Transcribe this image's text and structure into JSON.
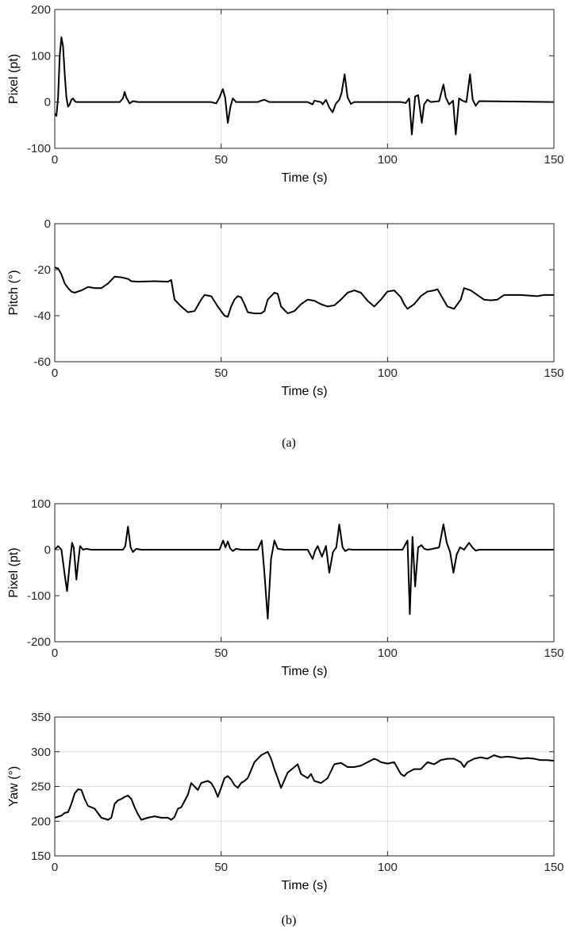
{
  "captions": [
    "(a)",
    "(b)"
  ],
  "chart_data": [
    {
      "type": "line",
      "panel": "(a)",
      "title": "",
      "xlabel": "Time (s)",
      "ylabel": "Pixel (pt)",
      "xlim": [
        0,
        150
      ],
      "ylim": [
        -100,
        200
      ],
      "xticks": [
        0,
        50,
        100,
        150
      ],
      "yticks": [
        -100,
        0,
        100,
        200
      ],
      "grid": "x",
      "series": [
        {
          "x": [
            0,
            0.5,
            1,
            1.5,
            2,
            2.5,
            3,
            3.5,
            4,
            4.5,
            5,
            5.5,
            6,
            6.5,
            7,
            8,
            10,
            19.5,
            20.5,
            21,
            21.5,
            22.5,
            23.5,
            25,
            47,
            48.5,
            49.5,
            50.5,
            51.2,
            52,
            52.8,
            53.5,
            54.5,
            56,
            61,
            62,
            63,
            64.5,
            76,
            77.5,
            78,
            80,
            80.5,
            81.5,
            82.5,
            83.5,
            84.5,
            85.5,
            86.2,
            87.1,
            88,
            89,
            90,
            104,
            105.5,
            106.5,
            107.3,
            108.3,
            109.2,
            110.3,
            111,
            112,
            113,
            115.5,
            116.8,
            117.5,
            118.5,
            119.7,
            120.5,
            121.5,
            122.5,
            123.7,
            124.8,
            125.6,
            126.5,
            127.5,
            150
          ],
          "y": [
            -25,
            -30,
            10,
            100,
            140,
            120,
            60,
            10,
            -10,
            -5,
            5,
            8,
            2,
            0,
            0,
            0,
            0,
            0,
            8,
            22,
            10,
            -3,
            2,
            0,
            0,
            -3,
            10,
            28,
            10,
            -45,
            -10,
            8,
            0,
            0,
            0,
            3,
            5,
            0,
            0,
            -5,
            3,
            0,
            -5,
            5,
            -12,
            -22,
            -3,
            5,
            20,
            60,
            10,
            -4,
            0,
            0,
            -2,
            8,
            -70,
            12,
            15,
            -45,
            -5,
            5,
            0,
            2,
            38,
            10,
            -5,
            3,
            -70,
            8,
            3,
            0,
            60,
            5,
            -8,
            2,
            0
          ]
        }
      ]
    },
    {
      "type": "line",
      "panel": "(a)",
      "title": "",
      "xlabel": "Time (s)",
      "ylabel": "Pitch (°)",
      "xlim": [
        0,
        150
      ],
      "ylim": [
        -60,
        0
      ],
      "xticks": [
        0,
        50,
        100,
        150
      ],
      "yticks": [
        -60,
        -40,
        -20,
        0
      ],
      "grid": "x",
      "series": [
        {
          "x": [
            0,
            1,
            2,
            3,
            4,
            5,
            6,
            8,
            10,
            12,
            14,
            16,
            18,
            20,
            22,
            23,
            25,
            30,
            34,
            35,
            36,
            38,
            40,
            42,
            44,
            45,
            47,
            49,
            51,
            52,
            53,
            54,
            55,
            56,
            57,
            58,
            60,
            62,
            63,
            64,
            66,
            67,
            68,
            70,
            72,
            74,
            76,
            78,
            80,
            82,
            84,
            86,
            88,
            90,
            92,
            94,
            96,
            98,
            100,
            102,
            104,
            105,
            106,
            108,
            110,
            112,
            114,
            115,
            116,
            118,
            120,
            122,
            123,
            125,
            127,
            129,
            131,
            133,
            135,
            140,
            145,
            147,
            150
          ],
          "y": [
            -19,
            -19.5,
            -22,
            -26,
            -28,
            -29.5,
            -30,
            -29,
            -27.5,
            -28,
            -28,
            -26,
            -23,
            -23.3,
            -24,
            -25,
            -25.2,
            -25,
            -25.2,
            -24.5,
            -33,
            -36,
            -38.5,
            -38,
            -33,
            -31,
            -31.5,
            -36,
            -40,
            -40.5,
            -36,
            -33,
            -31.5,
            -32,
            -35,
            -38.5,
            -39,
            -39,
            -38,
            -33,
            -30,
            -30.5,
            -36,
            -39,
            -38,
            -35,
            -33,
            -33.5,
            -35,
            -36,
            -35.5,
            -33,
            -30,
            -29,
            -30,
            -33.5,
            -36,
            -33,
            -29.5,
            -29,
            -32,
            -35,
            -37,
            -35,
            -31.5,
            -29.5,
            -29,
            -28.5,
            -31,
            -36,
            -37,
            -33,
            -28,
            -29,
            -31,
            -33,
            -33.3,
            -33,
            -31,
            -31,
            -31.5,
            -31,
            -31
          ]
        }
      ]
    },
    {
      "type": "line",
      "panel": "(b)",
      "title": "",
      "xlabel": "Time (s)",
      "ylabel": "Pixel (pt)",
      "xlim": [
        0,
        150
      ],
      "ylim": [
        -200,
        100
      ],
      "xticks": [
        0,
        50,
        100,
        150
      ],
      "yticks": [
        -200,
        -100,
        0,
        100
      ],
      "grid": "x",
      "series": [
        {
          "x": [
            0,
            1,
            2,
            3,
            3.7,
            4.5,
            5.2,
            5.7,
            6.5,
            7,
            7.6,
            8.5,
            9.5,
            11,
            20.5,
            21.2,
            22,
            22.8,
            23.5,
            24.5,
            26,
            49.5,
            50.6,
            51.3,
            52,
            52.7,
            53.5,
            54.5,
            56,
            61,
            62.2,
            63,
            64,
            65,
            66,
            67,
            69,
            76,
            77.5,
            78.2,
            79,
            80.3,
            81.5,
            82.5,
            83.6,
            84.6,
            85.5,
            86.5,
            87.3,
            88.3,
            89.5,
            91,
            104.5,
            106,
            106.7,
            107.5,
            108.3,
            109.2,
            110.2,
            111,
            112,
            113,
            115.5,
            116.8,
            117.8,
            118.8,
            119.8,
            120.8,
            121.8,
            123,
            124.5,
            125.5,
            126.5,
            127.5,
            150
          ],
          "y": [
            0,
            8,
            0,
            -55,
            -90,
            -30,
            15,
            5,
            -65,
            -30,
            8,
            0,
            2,
            0,
            0,
            8,
            50,
            5,
            -5,
            2,
            0,
            0,
            20,
            5,
            18,
            3,
            -3,
            2,
            0,
            0,
            20,
            -50,
            -150,
            -20,
            20,
            2,
            0,
            0,
            -20,
            -3,
            8,
            -15,
            8,
            -50,
            -5,
            5,
            55,
            5,
            -3,
            1,
            0,
            0,
            0,
            20,
            -140,
            28,
            -80,
            5,
            10,
            2,
            0,
            1,
            5,
            55,
            15,
            -5,
            -50,
            -10,
            5,
            0,
            15,
            5,
            -2,
            0,
            0
          ]
        }
      ]
    },
    {
      "type": "line",
      "panel": "(b)",
      "title": "",
      "xlabel": "Time (s)",
      "ylabel": "Yaw (°)",
      "xlim": [
        0,
        150
      ],
      "ylim": [
        150,
        350
      ],
      "xticks": [
        0,
        50,
        100,
        150
      ],
      "yticks": [
        150,
        200,
        250,
        300,
        350
      ],
      "grid": "x+y",
      "series": [
        {
          "x": [
            0,
            2,
            3,
            4,
            5,
            6,
            7,
            8,
            9,
            10,
            12,
            14,
            16,
            17,
            18,
            19,
            20,
            21,
            22,
            23,
            24,
            25,
            26,
            28,
            30,
            32,
            34,
            35,
            36,
            37,
            38,
            40,
            41,
            42,
            43,
            44,
            46,
            47,
            48,
            49,
            50,
            51,
            52,
            53,
            54,
            55,
            56,
            57,
            58,
            60,
            62,
            64,
            65,
            66,
            67,
            68,
            70,
            72,
            73,
            74,
            75,
            76,
            77,
            78,
            80,
            82,
            84,
            86,
            88,
            90,
            92,
            94,
            96,
            97,
            98,
            100,
            102,
            104,
            105,
            106,
            108,
            110,
            112,
            114,
            116,
            118,
            120,
            122,
            123,
            124,
            126,
            128,
            130,
            132,
            134,
            136,
            138,
            140,
            142,
            144,
            146,
            148,
            150
          ],
          "y": [
            205,
            208,
            212,
            213,
            225,
            240,
            246,
            245,
            232,
            222,
            218,
            205,
            202,
            205,
            225,
            230,
            232,
            235,
            237,
            232,
            220,
            210,
            202,
            205,
            207,
            205,
            205,
            202,
            206,
            218,
            220,
            238,
            255,
            250,
            245,
            255,
            258,
            255,
            247,
            235,
            248,
            262,
            265,
            260,
            252,
            248,
            255,
            258,
            262,
            285,
            295,
            300,
            290,
            275,
            262,
            248,
            270,
            278,
            282,
            268,
            265,
            262,
            268,
            258,
            255,
            262,
            282,
            284,
            278,
            278,
            280,
            285,
            290,
            288,
            285,
            283,
            285,
            268,
            265,
            270,
            275,
            275,
            285,
            282,
            288,
            290,
            290,
            285,
            278,
            285,
            290,
            292,
            290,
            295,
            292,
            293,
            292,
            290,
            291,
            290,
            288,
            288,
            287
          ]
        }
      ]
    }
  ]
}
